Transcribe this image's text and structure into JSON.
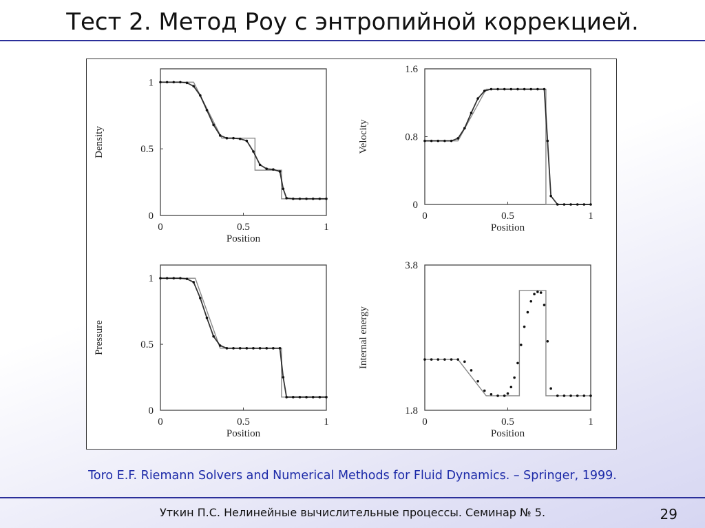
{
  "slide": {
    "title": "Тест 2. Метод Роу с энтропийной коррекцией.",
    "citation": "Toro E.F. Riemann Solvers and Numerical Methods for Fluid Dynamics. – Springer, 1999.",
    "footer": "Уткин П.С. Нелинейные вычислительные процессы. Семинар № 5.",
    "page_number": "29",
    "accent_color": "#2b2f9a",
    "citation_color": "#1c2aa8"
  },
  "chart_data": [
    {
      "type": "line",
      "xlabel": "Position",
      "ylabel": "Density",
      "xlim": [
        0,
        1
      ],
      "ylim": [
        0,
        1.1
      ],
      "xticks": [
        "0",
        "0.5",
        "1"
      ],
      "xtick_values": [
        0,
        0.5,
        1
      ],
      "yticks": [
        "0",
        "0.5",
        "1"
      ],
      "ytick_values": [
        0,
        0.5,
        1
      ],
      "grid": false,
      "exact": {
        "x": [
          0,
          0.2,
          0.37,
          0.57,
          0.57,
          0.73,
          0.73,
          1
        ],
        "y": [
          1,
          1,
          0.58,
          0.58,
          0.34,
          0.34,
          0.125,
          0.125
        ]
      },
      "numerical": {
        "x": [
          0,
          0.04,
          0.08,
          0.12,
          0.16,
          0.2,
          0.24,
          0.28,
          0.32,
          0.36,
          0.4,
          0.44,
          0.48,
          0.52,
          0.56,
          0.6,
          0.64,
          0.68,
          0.72,
          0.74,
          0.76,
          0.8,
          0.84,
          0.88,
          0.92,
          0.96,
          1
        ],
        "y": [
          1,
          1,
          1,
          1,
          0.995,
          0.97,
          0.9,
          0.79,
          0.68,
          0.6,
          0.58,
          0.58,
          0.575,
          0.56,
          0.48,
          0.38,
          0.35,
          0.345,
          0.33,
          0.2,
          0.13,
          0.125,
          0.125,
          0.125,
          0.125,
          0.125,
          0.125
        ]
      }
    },
    {
      "type": "line",
      "xlabel": "Position",
      "ylabel": "Velocity",
      "xlim": [
        0,
        1
      ],
      "ylim": [
        0,
        1.6
      ],
      "xticks": [
        "0",
        "0.5",
        "1"
      ],
      "xtick_values": [
        0,
        0.5,
        1
      ],
      "yticks": [
        "0",
        "0.8",
        "1.6"
      ],
      "ytick_values": [
        0,
        0.8,
        1.6
      ],
      "grid": false,
      "exact": {
        "x": [
          0,
          0.2,
          0.37,
          0.73,
          0.73,
          1
        ],
        "y": [
          0.75,
          0.75,
          1.36,
          1.36,
          0,
          0
        ]
      },
      "numerical": {
        "x": [
          0,
          0.04,
          0.08,
          0.12,
          0.16,
          0.2,
          0.24,
          0.28,
          0.32,
          0.36,
          0.4,
          0.44,
          0.48,
          0.52,
          0.56,
          0.6,
          0.64,
          0.68,
          0.72,
          0.74,
          0.76,
          0.8,
          0.84,
          0.88,
          0.92,
          0.96,
          1
        ],
        "y": [
          0.75,
          0.75,
          0.75,
          0.75,
          0.75,
          0.78,
          0.9,
          1.08,
          1.25,
          1.34,
          1.36,
          1.36,
          1.36,
          1.36,
          1.36,
          1.36,
          1.36,
          1.36,
          1.36,
          0.75,
          0.1,
          0,
          0,
          0,
          0,
          0,
          0
        ]
      }
    },
    {
      "type": "line",
      "xlabel": "Position",
      "ylabel": "Pressure",
      "xlim": [
        0,
        1
      ],
      "ylim": [
        0,
        1.1
      ],
      "xticks": [
        "0",
        "0.5",
        "1"
      ],
      "xtick_values": [
        0,
        0.5,
        1
      ],
      "yticks": [
        "0",
        "0.5",
        "1"
      ],
      "ytick_values": [
        0,
        0.5,
        1
      ],
      "grid": false,
      "exact": {
        "x": [
          0,
          0.21,
          0.36,
          0.73,
          0.73,
          1
        ],
        "y": [
          1,
          1,
          0.47,
          0.47,
          0.1,
          0.1
        ]
      },
      "numerical": {
        "x": [
          0,
          0.04,
          0.08,
          0.12,
          0.16,
          0.2,
          0.24,
          0.28,
          0.32,
          0.36,
          0.4,
          0.44,
          0.48,
          0.52,
          0.56,
          0.6,
          0.64,
          0.68,
          0.72,
          0.74,
          0.76,
          0.8,
          0.84,
          0.88,
          0.92,
          0.96,
          1
        ],
        "y": [
          1,
          1,
          1,
          1,
          0.995,
          0.97,
          0.85,
          0.7,
          0.56,
          0.49,
          0.47,
          0.47,
          0.47,
          0.47,
          0.47,
          0.47,
          0.47,
          0.47,
          0.47,
          0.25,
          0.1,
          0.1,
          0.1,
          0.1,
          0.1,
          0.1,
          0.1
        ]
      }
    },
    {
      "type": "line",
      "xlabel": "Position",
      "ylabel": "Internal energy",
      "xlim": [
        0,
        1
      ],
      "ylim": [
        1.8,
        3.8
      ],
      "xticks": [
        "0",
        "0.5",
        "1"
      ],
      "xtick_values": [
        0,
        0.5,
        1
      ],
      "yticks": [
        "1.8",
        "3.8"
      ],
      "ytick_values": [
        1.8,
        3.8
      ],
      "grid": false,
      "exact": {
        "x": [
          0,
          0.2,
          0.37,
          0.57,
          0.57,
          0.73,
          0.73,
          1
        ],
        "y": [
          2.5,
          2.5,
          2.0,
          2.0,
          3.45,
          3.45,
          2.0,
          2.0
        ]
      },
      "numerical": {
        "x": [
          0,
          0.04,
          0.08,
          0.12,
          0.16,
          0.2,
          0.24,
          0.28,
          0.32,
          0.36,
          0.4,
          0.44,
          0.48,
          0.5,
          0.52,
          0.54,
          0.56,
          0.58,
          0.6,
          0.62,
          0.64,
          0.66,
          0.68,
          0.7,
          0.72,
          0.74,
          0.76,
          0.8,
          0.84,
          0.88,
          0.92,
          0.96,
          1
        ],
        "y": [
          2.5,
          2.5,
          2.5,
          2.5,
          2.5,
          2.5,
          2.47,
          2.35,
          2.2,
          2.07,
          2.02,
          2.0,
          2.0,
          2.03,
          2.12,
          2.25,
          2.45,
          2.7,
          2.95,
          3.15,
          3.3,
          3.4,
          3.43,
          3.42,
          3.25,
          2.75,
          2.1,
          2.0,
          2.0,
          2.0,
          2.0,
          2.0,
          2.0
        ]
      }
    }
  ]
}
